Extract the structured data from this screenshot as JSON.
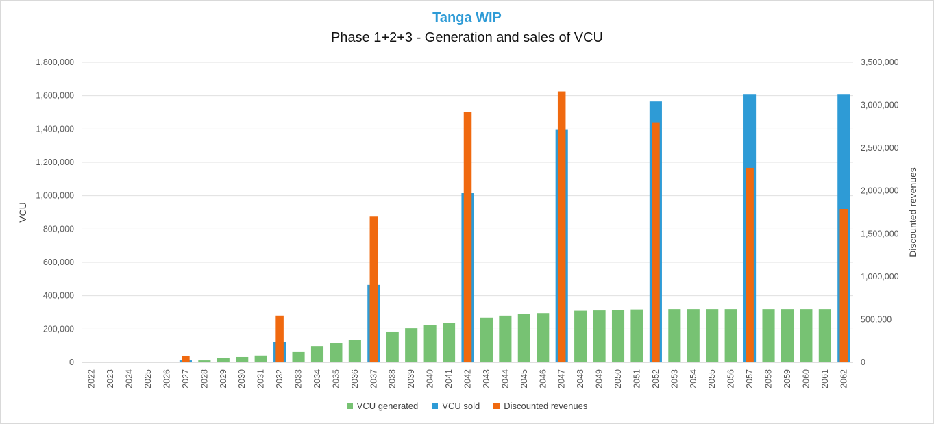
{
  "chart_data": {
    "type": "bar",
    "title": "Tanga WIP",
    "subtitle": "Phase 1+2+3 - Generation and sales of VCU",
    "ylabel": "VCU",
    "y2label": "Discounted revenues",
    "ylim": [
      0,
      1800000
    ],
    "y2lim": [
      0,
      3500000
    ],
    "yticks": [
      "0",
      "200,000",
      "400,000",
      "600,000",
      "800,000",
      "1,000,000",
      "1,200,000",
      "1,400,000",
      "1,600,000",
      "1,800,000"
    ],
    "y2ticks": [
      "0",
      "500,000",
      "1,000,000",
      "1,500,000",
      "2,000,000",
      "2,500,000",
      "3,000,000",
      "3,500,000"
    ],
    "grid": true,
    "legend_position": "bottom",
    "categories": [
      "2022",
      "2023",
      "2024",
      "2025",
      "2026",
      "2027",
      "2028",
      "2029",
      "2030",
      "2031",
      "2032",
      "2033",
      "2034",
      "2035",
      "2036",
      "2037",
      "2038",
      "2039",
      "2040",
      "2041",
      "2042",
      "2043",
      "2044",
      "2045",
      "2046",
      "2047",
      "2048",
      "2049",
      "2050",
      "2051",
      "2052",
      "2053",
      "2054",
      "2055",
      "2056",
      "2057",
      "2058",
      "2059",
      "2060",
      "2061",
      "2062"
    ],
    "series": [
      {
        "name": "VCU generated",
        "axis": "left",
        "color": "#77c273",
        "values": [
          0,
          0,
          4000,
          4000,
          4000,
          0,
          12000,
          25000,
          33000,
          42000,
          0,
          62000,
          98000,
          115000,
          135000,
          0,
          185000,
          205000,
          222000,
          238000,
          0,
          268000,
          280000,
          288000,
          295000,
          0,
          310000,
          312000,
          315000,
          318000,
          0,
          320000,
          320000,
          320000,
          320000,
          0,
          320000,
          320000,
          320000,
          320000,
          0
        ]
      },
      {
        "name": "VCU sold",
        "axis": "left",
        "color": "#2e9bd6",
        "values": [
          0,
          0,
          0,
          0,
          0,
          12000,
          0,
          0,
          0,
          0,
          120000,
          0,
          0,
          0,
          0,
          465000,
          0,
          0,
          0,
          0,
          1015000,
          0,
          0,
          0,
          0,
          1395000,
          0,
          0,
          0,
          0,
          1565000,
          0,
          0,
          0,
          0,
          1610000,
          0,
          0,
          0,
          0,
          1610000
        ]
      },
      {
        "name": "Discounted revenues",
        "axis": "right",
        "color": "#f0690f",
        "values": [
          0,
          0,
          0,
          0,
          0,
          80000,
          0,
          0,
          0,
          0,
          545000,
          0,
          0,
          0,
          0,
          1700000,
          0,
          0,
          0,
          0,
          2920000,
          0,
          0,
          0,
          0,
          3160000,
          0,
          0,
          0,
          0,
          2800000,
          0,
          0,
          0,
          0,
          2270000,
          0,
          0,
          0,
          0,
          1790000
        ]
      }
    ]
  }
}
